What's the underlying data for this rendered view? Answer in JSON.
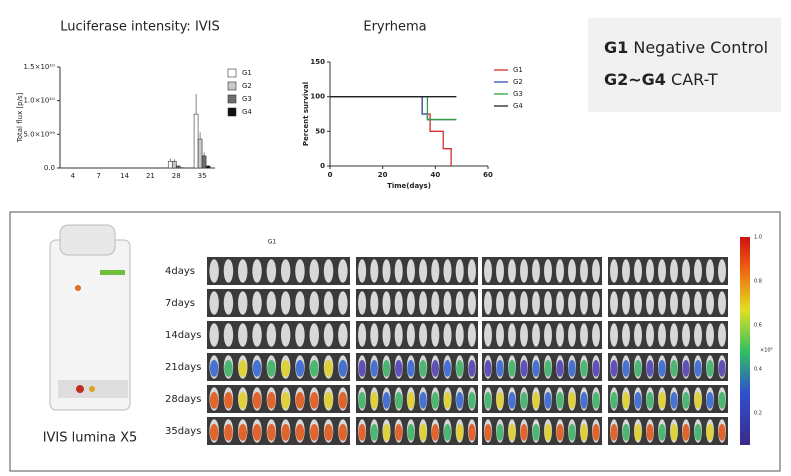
{
  "chart_data": [
    {
      "type": "bar",
      "title": "Luciferase intensity: IVIS",
      "y_label": "Total flux [p/s]",
      "categories": [
        "4",
        "7",
        "14",
        "21",
        "28",
        "35"
      ],
      "series": [
        {
          "name": "G1",
          "color": "#ffffff",
          "values": [
            0,
            0,
            0,
            0,
            1000000000,
            8000000000
          ],
          "errors": [
            0,
            0,
            0,
            0,
            400000000,
            3000000000
          ]
        },
        {
          "name": "G2",
          "color": "#c8c8c8",
          "values": [
            0,
            0,
            0,
            0,
            1000000000,
            4300000000
          ],
          "errors": [
            0,
            0,
            0,
            0,
            300000000,
            1000000000
          ]
        },
        {
          "name": "G3",
          "color": "#6e6e6e",
          "values": [
            0,
            0,
            0,
            0,
            300000000,
            1800000000
          ],
          "errors": [
            0,
            0,
            0,
            0,
            100000000,
            500000000
          ]
        },
        {
          "name": "G4",
          "color": "#111111",
          "values": [
            0,
            0,
            0,
            0,
            50000000,
            300000000
          ],
          "errors": [
            0,
            0,
            0,
            0,
            0,
            100000000
          ]
        }
      ],
      "ylim": [
        0,
        15000000000
      ],
      "yticks": [
        {
          "value": 0,
          "label": "0.0"
        },
        {
          "value": 5000000000,
          "label": "5.0×10⁰⁹"
        },
        {
          "value": 10000000000,
          "label": "1.0×10¹⁰"
        },
        {
          "value": 15000000000,
          "label": "1.5×10¹⁰"
        }
      ]
    },
    {
      "type": "step",
      "title": "Eryrhema",
      "x_label": "Time(days)",
      "y_label": "Percent survival",
      "series": [
        {
          "name": "G1",
          "color": "#d03030",
          "x": [
            0,
            35,
            38,
            43,
            46
          ],
          "values": [
            100,
            75,
            50,
            25,
            0
          ]
        },
        {
          "name": "G2",
          "color": "#3050b0",
          "x": [
            0,
            35,
            37,
            48
          ],
          "values": [
            100,
            75,
            67,
            67
          ]
        },
        {
          "name": "G3",
          "color": "#30a040",
          "x": [
            0,
            37,
            48
          ],
          "values": [
            100,
            67,
            67
          ]
        },
        {
          "name": "G4",
          "color": "#222222",
          "x": [
            0,
            48
          ],
          "values": [
            100,
            100
          ]
        }
      ],
      "xlim": [
        0,
        60
      ],
      "xticks": [
        0,
        20,
        40,
        60
      ],
      "ylim": [
        0,
        150
      ],
      "yticks": [
        0,
        50,
        100,
        150
      ]
    }
  ],
  "legend_box": {
    "lines": [
      {
        "group": "G1",
        "text": "Negative Control"
      },
      {
        "group": "G2~G4",
        "text": "CAR-T"
      }
    ]
  },
  "imaging": {
    "device": "IVIS lumina X5",
    "group_label": "G1",
    "rows": [
      "4days",
      "7days",
      "14days",
      "21days",
      "28days",
      "35days"
    ],
    "colorbar_ticks": [
      "1.0",
      "0.8",
      "0.6",
      "0.4",
      "0.2"
    ],
    "colorbar_unit": "×10⁹"
  }
}
